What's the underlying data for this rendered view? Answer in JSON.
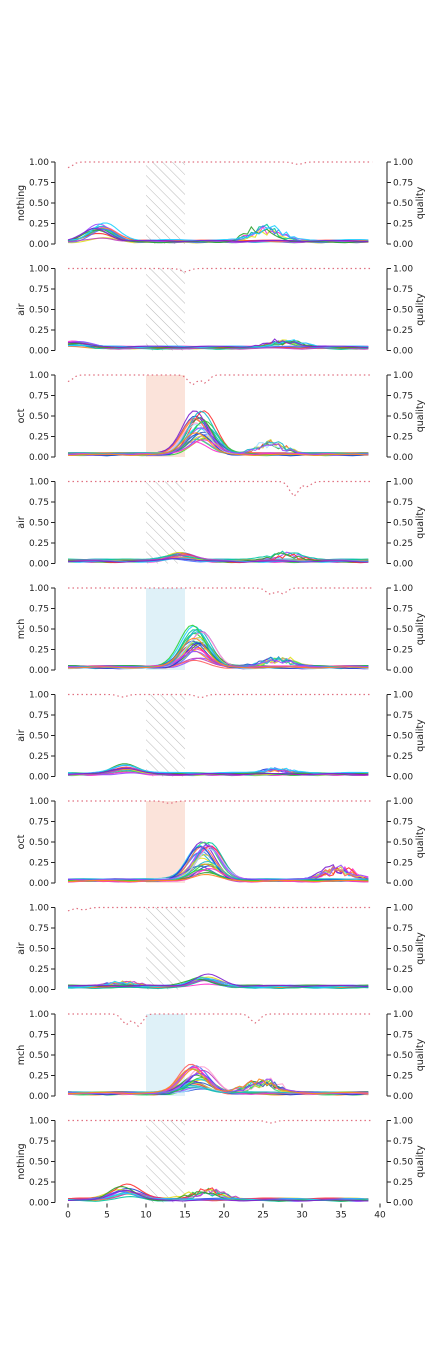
{
  "chart_data": {
    "type": "line",
    "x_axis": {
      "ticks": [
        0,
        5,
        10,
        15,
        20,
        25,
        30,
        35,
        40
      ],
      "xlim": [
        0,
        40
      ]
    },
    "left_ylim": [
      0,
      1
    ],
    "right_ylim": [
      0,
      1
    ],
    "y_ticks": [
      "0.00",
      "0.25",
      "0.50",
      "0.75",
      "1.00"
    ],
    "right_ylabel": "quality",
    "stimulus_window": [
      10,
      15
    ],
    "colors": {
      "quality_line": "#e07080",
      "oct_span": "#fbe3da",
      "mch_span": "#dff1f8",
      "hatch": "#b8b8b8",
      "axis": "#222222"
    },
    "panels": [
      {
        "label": "nothing",
        "span": "hatch",
        "peak_x": 4,
        "peak_y": 0.22,
        "second_peak_x": 25,
        "second_peak_y": 0.22,
        "quality_dips": [
          [
            0,
            0.93
          ],
          [
            29.5,
            0.97
          ]
        ]
      },
      {
        "label": "air",
        "span": "hatch",
        "peak_x": 1,
        "peak_y": 0.08,
        "second_peak_x": 28,
        "second_peak_y": 0.1,
        "quality_dips": [
          [
            15,
            0.96
          ]
        ]
      },
      {
        "label": "oct",
        "span": "oct",
        "peak_x": 17,
        "peak_y": 0.53,
        "second_peak_x": 26,
        "second_peak_y": 0.17,
        "quality_dips": [
          [
            0,
            0.92
          ],
          [
            16,
            0.88
          ],
          [
            17.5,
            0.9
          ]
        ]
      },
      {
        "label": "air",
        "span": "hatch",
        "peak_x": 14,
        "peak_y": 0.12,
        "second_peak_x": 28,
        "second_peak_y": 0.12,
        "quality_dips": [
          [
            29,
            0.82
          ],
          [
            30.5,
            0.93
          ]
        ]
      },
      {
        "label": "mch",
        "span": "mch",
        "peak_x": 16.5,
        "peak_y": 0.5,
        "second_peak_x": 27,
        "second_peak_y": 0.12,
        "quality_dips": [
          [
            26,
            0.92
          ],
          [
            27.5,
            0.93
          ]
        ]
      },
      {
        "label": "air",
        "span": "hatch",
        "peak_x": 7,
        "peak_y": 0.12,
        "second_peak_x": 26,
        "second_peak_y": 0.07,
        "quality_dips": [
          [
            7,
            0.97
          ],
          [
            17,
            0.96
          ]
        ]
      },
      {
        "label": "oct",
        "span": "oct",
        "peak_x": 17.5,
        "peak_y": 0.48,
        "second_peak_x": 34.5,
        "second_peak_y": 0.18,
        "quality_dips": [
          [
            13,
            0.97
          ]
        ]
      },
      {
        "label": "air",
        "span": "hatch",
        "peak_x": 17.5,
        "peak_y": 0.15,
        "second_peak_x": 7,
        "second_peak_y": 0.07,
        "quality_dips": [
          [
            0,
            0.96
          ],
          [
            2,
            0.97
          ]
        ]
      },
      {
        "label": "mch",
        "span": "mch",
        "peak_x": 16.5,
        "peak_y": 0.36,
        "second_peak_x": 25,
        "second_peak_y": 0.19,
        "quality_dips": [
          [
            7.5,
            0.87
          ],
          [
            9,
            0.85
          ],
          [
            24,
            0.89
          ]
        ]
      },
      {
        "label": "nothing",
        "span": "hatch",
        "peak_x": 7.5,
        "peak_y": 0.18,
        "second_peak_x": 18,
        "second_peak_y": 0.14,
        "quality_dips": [
          [
            26,
            0.97
          ]
        ]
      }
    ]
  }
}
